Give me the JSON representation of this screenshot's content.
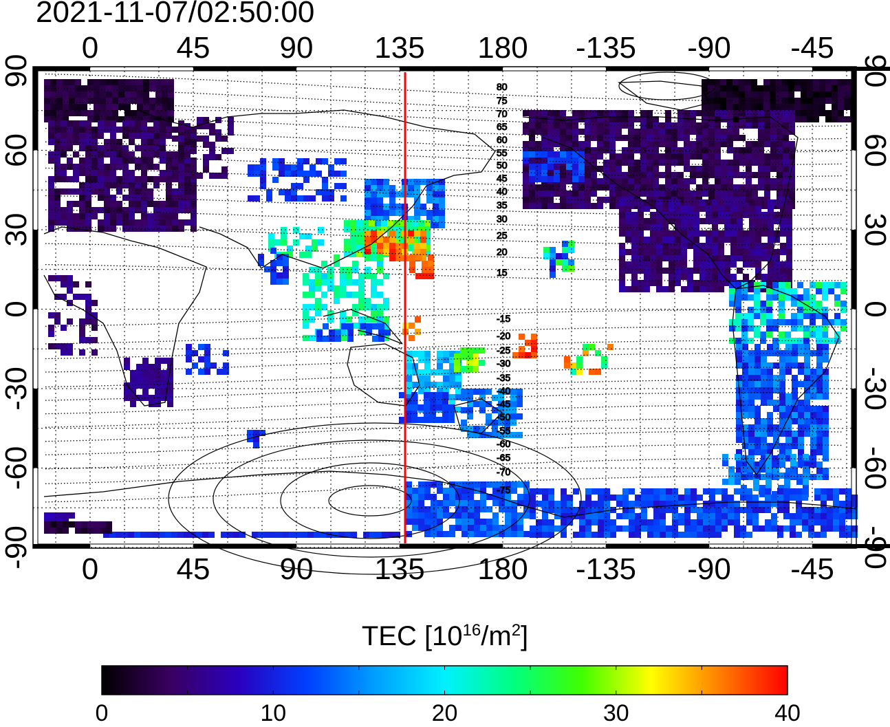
{
  "timestamp": "2021-11-07/02:50:00",
  "map": {
    "lon_ticks": [
      "0",
      "45",
      "90",
      "135",
      "180",
      "-135",
      "-90",
      "-45"
    ],
    "lat_ticks": [
      "90",
      "60",
      "30",
      "0",
      "-30",
      "-60",
      "-90"
    ],
    "contour_labels": [
      "80",
      "75",
      "70",
      "65",
      "60",
      "55",
      "50",
      "45",
      "40",
      "35",
      "30",
      "25",
      "20",
      "15",
      "-15",
      "-20",
      "-25",
      "-30",
      "-35",
      "-40",
      "-45",
      "-50",
      "-55",
      "-60",
      "-65",
      "-70",
      "-75"
    ],
    "noon_meridian_color": "#ff0000"
  },
  "colorbar": {
    "title_prefix": "TEC  [10",
    "title_exp": "16",
    "title_mid": "/m",
    "title_exp2": "2",
    "title_suffix": "]",
    "min": 0,
    "max": 40,
    "ticks": [
      "0",
      "10",
      "20",
      "30",
      "40"
    ]
  },
  "colors": {
    "stops": [
      "#000000",
      "#3a0060",
      "#2a00c0",
      "#0040ff",
      "#00a0ff",
      "#00f0ff",
      "#00ff80",
      "#40ff00",
      "#ffff00",
      "#ff8000",
      "#ff0000"
    ]
  }
}
